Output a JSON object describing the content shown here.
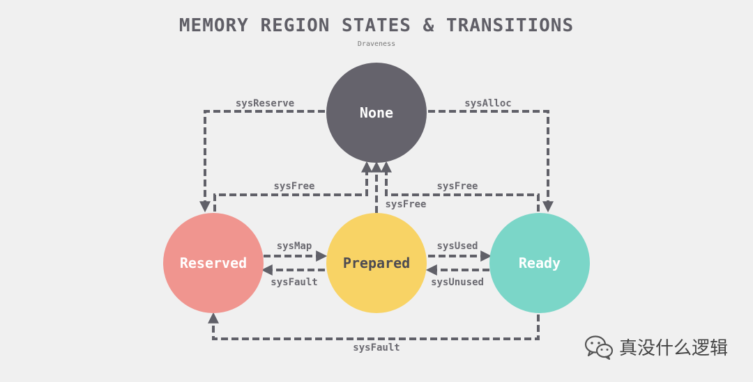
{
  "diagram": {
    "title": "MEMORY REGION STATES & TRANSITIONS",
    "subtitle": "Draveness",
    "states": {
      "none": "None",
      "reserved": "Reserved",
      "prepared": "Prepared",
      "ready": "Ready"
    },
    "edges": {
      "sysReserve": "sysReserve",
      "sysAlloc": "sysAlloc",
      "sysFree_reserved": "sysFree",
      "sysFree_ready": "sysFree",
      "sysFree_prepared": "sysFree",
      "sysMap": "sysMap",
      "sysFault_prepared": "sysFault",
      "sysUsed": "sysUsed",
      "sysUnused": "sysUnused",
      "sysFault_ready": "sysFault"
    },
    "colors": {
      "none": "#65636c",
      "reserved": "#f0958f",
      "prepared": "#f8d365",
      "ready": "#7bd6c8",
      "edge": "#606068"
    }
  },
  "watermark": {
    "text": "真没什么逻辑",
    "icon": "wechat-icon"
  }
}
